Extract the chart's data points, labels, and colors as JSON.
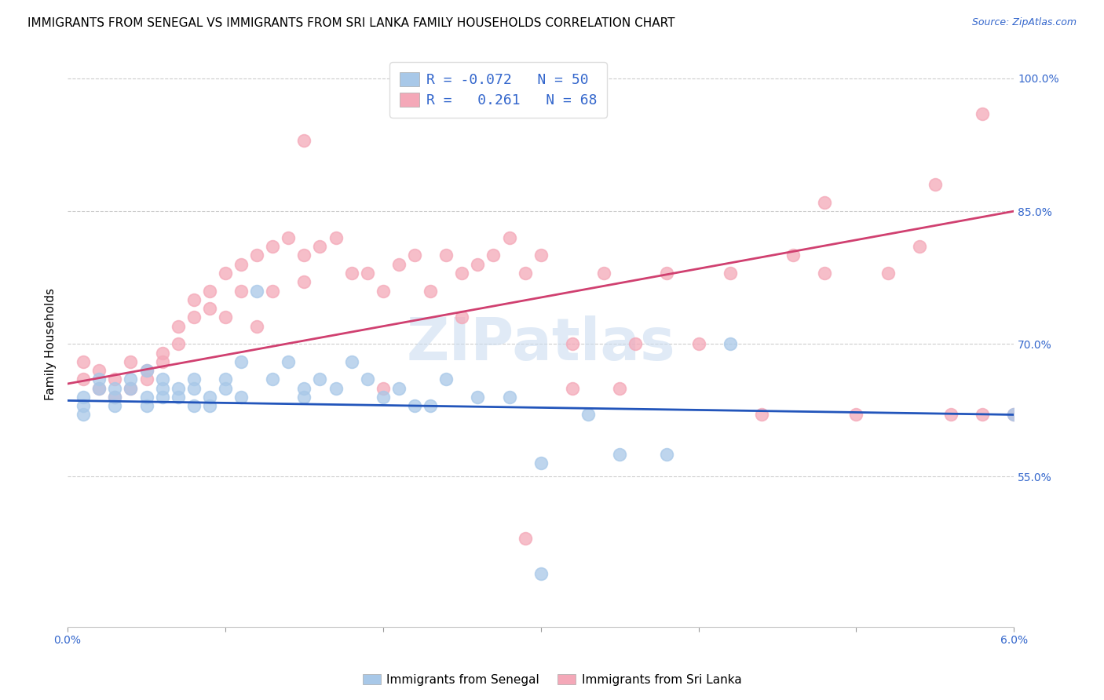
{
  "title": "IMMIGRANTS FROM SENEGAL VS IMMIGRANTS FROM SRI LANKA FAMILY HOUSEHOLDS CORRELATION CHART",
  "source": "Source: ZipAtlas.com",
  "ylabel": "Family Households",
  "watermark": "ZIPatlas",
  "senegal_color": "#a8c8e8",
  "srilanka_color": "#f4a8b8",
  "senegal_line_color": "#2255bb",
  "srilanka_line_color": "#d04070",
  "background_color": "#ffffff",
  "senegal_x": [
    0.001,
    0.001,
    0.001,
    0.002,
    0.002,
    0.003,
    0.003,
    0.003,
    0.004,
    0.004,
    0.005,
    0.005,
    0.005,
    0.006,
    0.006,
    0.006,
    0.007,
    0.007,
    0.008,
    0.008,
    0.008,
    0.009,
    0.009,
    0.01,
    0.01,
    0.011,
    0.011,
    0.012,
    0.013,
    0.014,
    0.015,
    0.015,
    0.016,
    0.017,
    0.018,
    0.019,
    0.02,
    0.021,
    0.022,
    0.023,
    0.024,
    0.026,
    0.028,
    0.03,
    0.033,
    0.035,
    0.038,
    0.042,
    0.06,
    0.03
  ],
  "senegal_y": [
    0.63,
    0.64,
    0.62,
    0.65,
    0.66,
    0.63,
    0.65,
    0.64,
    0.66,
    0.65,
    0.64,
    0.67,
    0.63,
    0.65,
    0.64,
    0.66,
    0.65,
    0.64,
    0.63,
    0.66,
    0.65,
    0.64,
    0.63,
    0.66,
    0.65,
    0.64,
    0.68,
    0.76,
    0.66,
    0.68,
    0.65,
    0.64,
    0.66,
    0.65,
    0.68,
    0.66,
    0.64,
    0.65,
    0.63,
    0.63,
    0.66,
    0.64,
    0.64,
    0.565,
    0.62,
    0.575,
    0.575,
    0.7,
    0.62,
    0.44
  ],
  "srilanka_x": [
    0.001,
    0.001,
    0.002,
    0.002,
    0.003,
    0.003,
    0.004,
    0.004,
    0.005,
    0.005,
    0.006,
    0.006,
    0.007,
    0.007,
    0.008,
    0.008,
    0.009,
    0.009,
    0.01,
    0.01,
    0.011,
    0.011,
    0.012,
    0.012,
    0.013,
    0.013,
    0.014,
    0.015,
    0.015,
    0.016,
    0.017,
    0.018,
    0.019,
    0.02,
    0.021,
    0.022,
    0.023,
    0.024,
    0.025,
    0.026,
    0.027,
    0.028,
    0.029,
    0.03,
    0.032,
    0.034,
    0.036,
    0.038,
    0.04,
    0.042,
    0.044,
    0.046,
    0.048,
    0.05,
    0.052,
    0.054,
    0.056,
    0.058,
    0.06,
    0.029,
    0.032,
    0.015,
    0.048,
    0.035,
    0.02,
    0.025,
    0.055,
    0.058
  ],
  "srilanka_y": [
    0.66,
    0.68,
    0.65,
    0.67,
    0.64,
    0.66,
    0.65,
    0.68,
    0.66,
    0.67,
    0.69,
    0.68,
    0.7,
    0.72,
    0.73,
    0.75,
    0.74,
    0.76,
    0.73,
    0.78,
    0.76,
    0.79,
    0.72,
    0.8,
    0.81,
    0.76,
    0.82,
    0.8,
    0.77,
    0.81,
    0.82,
    0.78,
    0.78,
    0.76,
    0.79,
    0.8,
    0.76,
    0.8,
    0.78,
    0.79,
    0.8,
    0.82,
    0.78,
    0.8,
    0.7,
    0.78,
    0.7,
    0.78,
    0.7,
    0.78,
    0.62,
    0.8,
    0.78,
    0.62,
    0.78,
    0.81,
    0.62,
    0.62,
    0.62,
    0.48,
    0.65,
    0.93,
    0.86,
    0.65,
    0.65,
    0.73,
    0.88,
    0.96
  ],
  "xmin": 0.0,
  "xmax": 0.06,
  "ymin": 0.38,
  "ymax": 1.02,
  "ytick_vals": [
    0.55,
    0.7,
    0.85,
    1.0
  ],
  "ytick_labels": [
    "55.0%",
    "70.0%",
    "85.0%",
    "100.0%"
  ],
  "xtick_vals": [
    0.0,
    0.01,
    0.02,
    0.03,
    0.04,
    0.05,
    0.06
  ],
  "title_fontsize": 11,
  "axis_fontsize": 10,
  "legend_fontsize": 13
}
